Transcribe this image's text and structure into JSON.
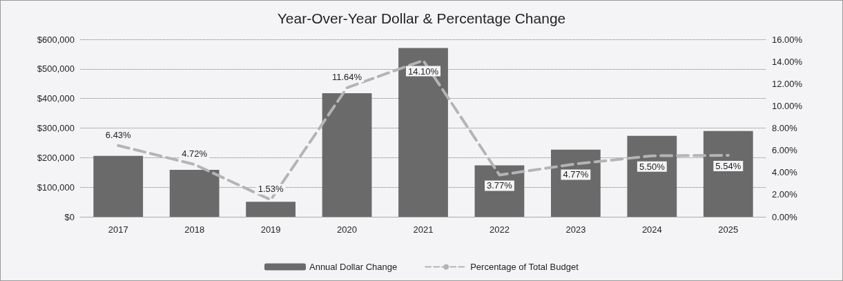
{
  "chart_data": {
    "type": "bar",
    "title": "Year-Over-Year Dollar & Percentage Change",
    "categories": [
      "2017",
      "2018",
      "2019",
      "2020",
      "2021",
      "2022",
      "2023",
      "2024",
      "2025"
    ],
    "series": [
      {
        "name": "Annual Dollar Change",
        "color": "#6a6a6a",
        "values": [
          206000,
          159000,
          51000,
          418000,
          571000,
          174000,
          227000,
          274000,
          290000
        ]
      },
      {
        "name": "Percentage of Total Budget",
        "type": "line",
        "axis": "y2",
        "color": "#b4b4b4",
        "line_style": "dashed",
        "marker": "none",
        "values": [
          6.43,
          4.72,
          1.53,
          11.64,
          14.1,
          3.77,
          4.77,
          5.5,
          5.54
        ],
        "value_labels": [
          "6.43%",
          "4.72%",
          "1.53%",
          "11.64%",
          "14.10%",
          "3.77%",
          "4.77%",
          "5.50%",
          "5.54%"
        ]
      }
    ],
    "ylim": [
      0,
      600000
    ],
    "yticks": [
      {
        "value": 0,
        "label": "$0"
      },
      {
        "value": 100000,
        "label": "$100,000"
      },
      {
        "value": 200000,
        "label": "$200,000"
      },
      {
        "value": 300000,
        "label": "$300,000"
      },
      {
        "value": 400000,
        "label": "$400,000"
      },
      {
        "value": 500000,
        "label": "$500,000"
      },
      {
        "value": 600000,
        "label": "$600,000"
      }
    ],
    "y2lim": [
      0,
      16
    ],
    "y2ticks": [
      {
        "value": 0,
        "label": "0.00%"
      },
      {
        "value": 2,
        "label": "2.00%"
      },
      {
        "value": 4,
        "label": "4.00%"
      },
      {
        "value": 6,
        "label": "6.00%"
      },
      {
        "value": 8,
        "label": "8.00%"
      },
      {
        "value": 10,
        "label": "10.00%"
      },
      {
        "value": 12,
        "label": "12.00%"
      },
      {
        "value": 14,
        "label": "14.00%"
      },
      {
        "value": 16,
        "label": "16.00%"
      }
    ],
    "grid": "y",
    "legend": "bottom"
  }
}
